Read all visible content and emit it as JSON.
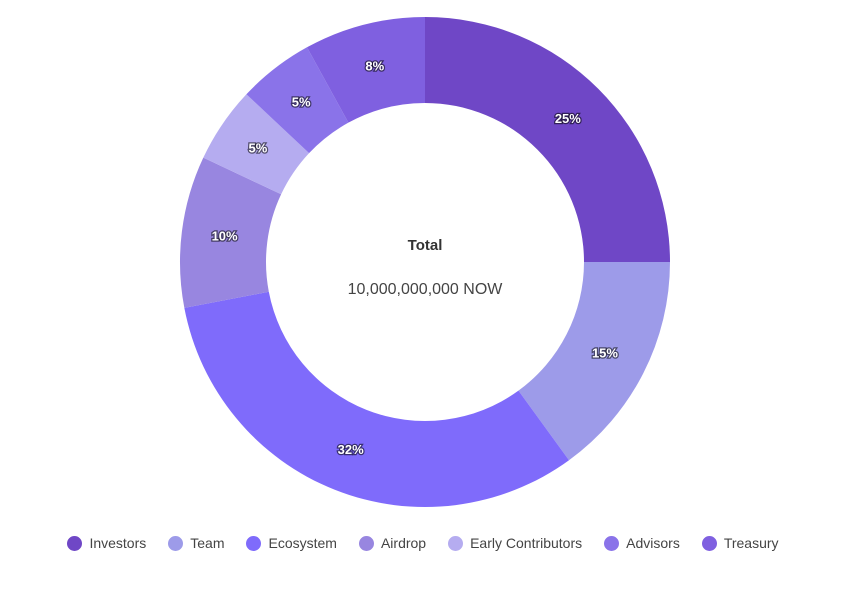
{
  "chart_data": {
    "type": "pie",
    "donut": true,
    "center_title": "Total",
    "center_value": "10,000,000,000 NOW",
    "legend_position": "bottom",
    "slices": [
      {
        "name": "Investors",
        "value": 25,
        "label": "25%",
        "color": "#6f47c6"
      },
      {
        "name": "Team",
        "value": 15,
        "label": "15%",
        "color": "#9d9be9"
      },
      {
        "name": "Ecosystem",
        "value": 32,
        "label": "32%",
        "color": "#7f6bfb"
      },
      {
        "name": "Airdrop",
        "value": 10,
        "label": "10%",
        "color": "#9886e0"
      },
      {
        "name": "Early Contributors",
        "value": 5,
        "label": "5%",
        "color": "#b5acf0"
      },
      {
        "name": "Advisors",
        "value": 5,
        "label": "5%",
        "color": "#8a73e9"
      },
      {
        "name": "Treasury",
        "value": 8,
        "label": "8%",
        "color": "#7f60e0"
      }
    ]
  }
}
